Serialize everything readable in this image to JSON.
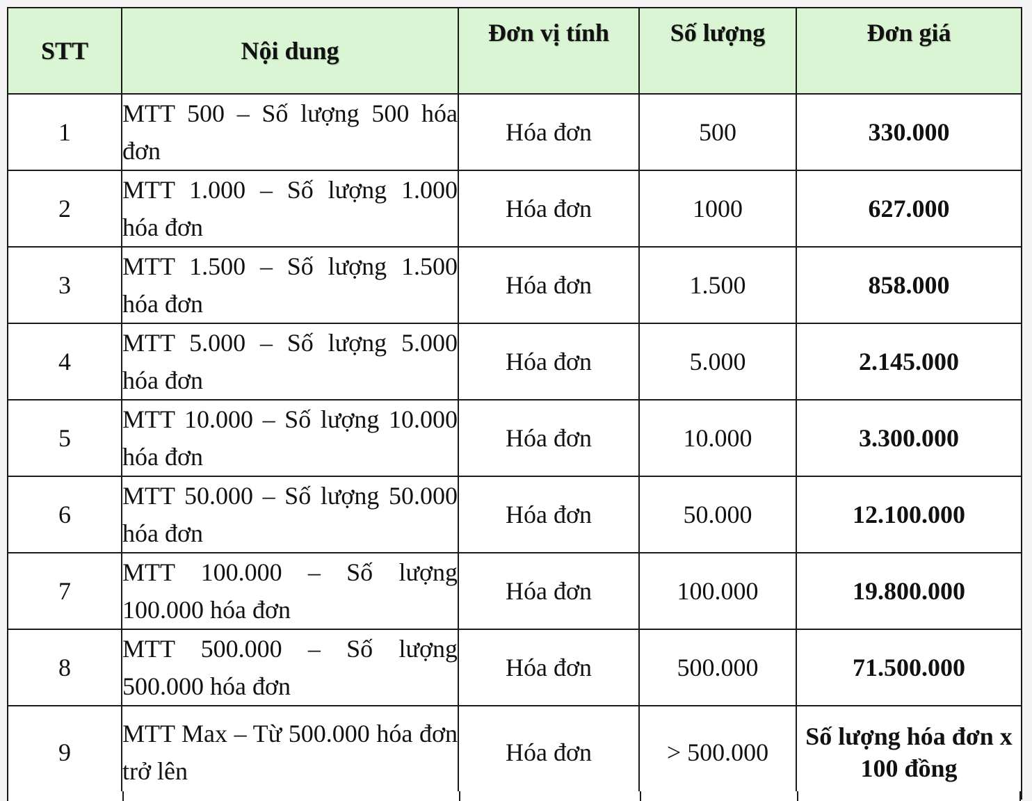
{
  "table": {
    "headers": {
      "stt": "STT",
      "content": "Nội dung",
      "unit": "Đơn vị tính",
      "quantity": "Số lượng",
      "price": "Đơn giá"
    },
    "rows": [
      {
        "stt": "1",
        "content": "MTT 500 – Số lượng 500 hóa đơn",
        "unit": "Hóa đơn",
        "quantity": "500",
        "price": "330.000"
      },
      {
        "stt": "2",
        "content": "MTT 1.000 – Số lượng 1.000 hóa đơn",
        "unit": "Hóa đơn",
        "quantity": "1000",
        "price": "627.000"
      },
      {
        "stt": "3",
        "content": "MTT 1.500 – Số lượng 1.500 hóa đơn",
        "unit": "Hóa đơn",
        "quantity": "1.500",
        "price": "858.000"
      },
      {
        "stt": "4",
        "content": "MTT 5.000 – Số lượng 5.000 hóa đơn",
        "unit": "Hóa đơn",
        "quantity": "5.000",
        "price": "2.145.000"
      },
      {
        "stt": "5",
        "content": "MTT 10.000 – Số lượng 10.000 hóa đơn",
        "unit": "Hóa đơn",
        "quantity": "10.000",
        "price": "3.300.000"
      },
      {
        "stt": "6",
        "content": "MTT 50.000 – Số lượng 50.000 hóa đơn",
        "unit": "Hóa đơn",
        "quantity": "50.000",
        "price": "12.100.000"
      },
      {
        "stt": "7",
        "content": "MTT 100.000 – Số lượng 100.000 hóa đơn",
        "unit": "Hóa đơn",
        "quantity": "100.000",
        "price": "19.800.000"
      },
      {
        "stt": "8",
        "content": "MTT 500.000 – Số lượng 500.000 hóa đơn",
        "unit": "Hóa đơn",
        "quantity": "500.000",
        "price": "71.500.000"
      },
      {
        "stt": "9",
        "content": "MTT Max – Từ 500.000 hóa đơn trở lên",
        "unit": "Hóa đơn",
        "quantity": "> 500.000",
        "price": "Số lượng hóa đơn x 100 đồng"
      }
    ]
  }
}
